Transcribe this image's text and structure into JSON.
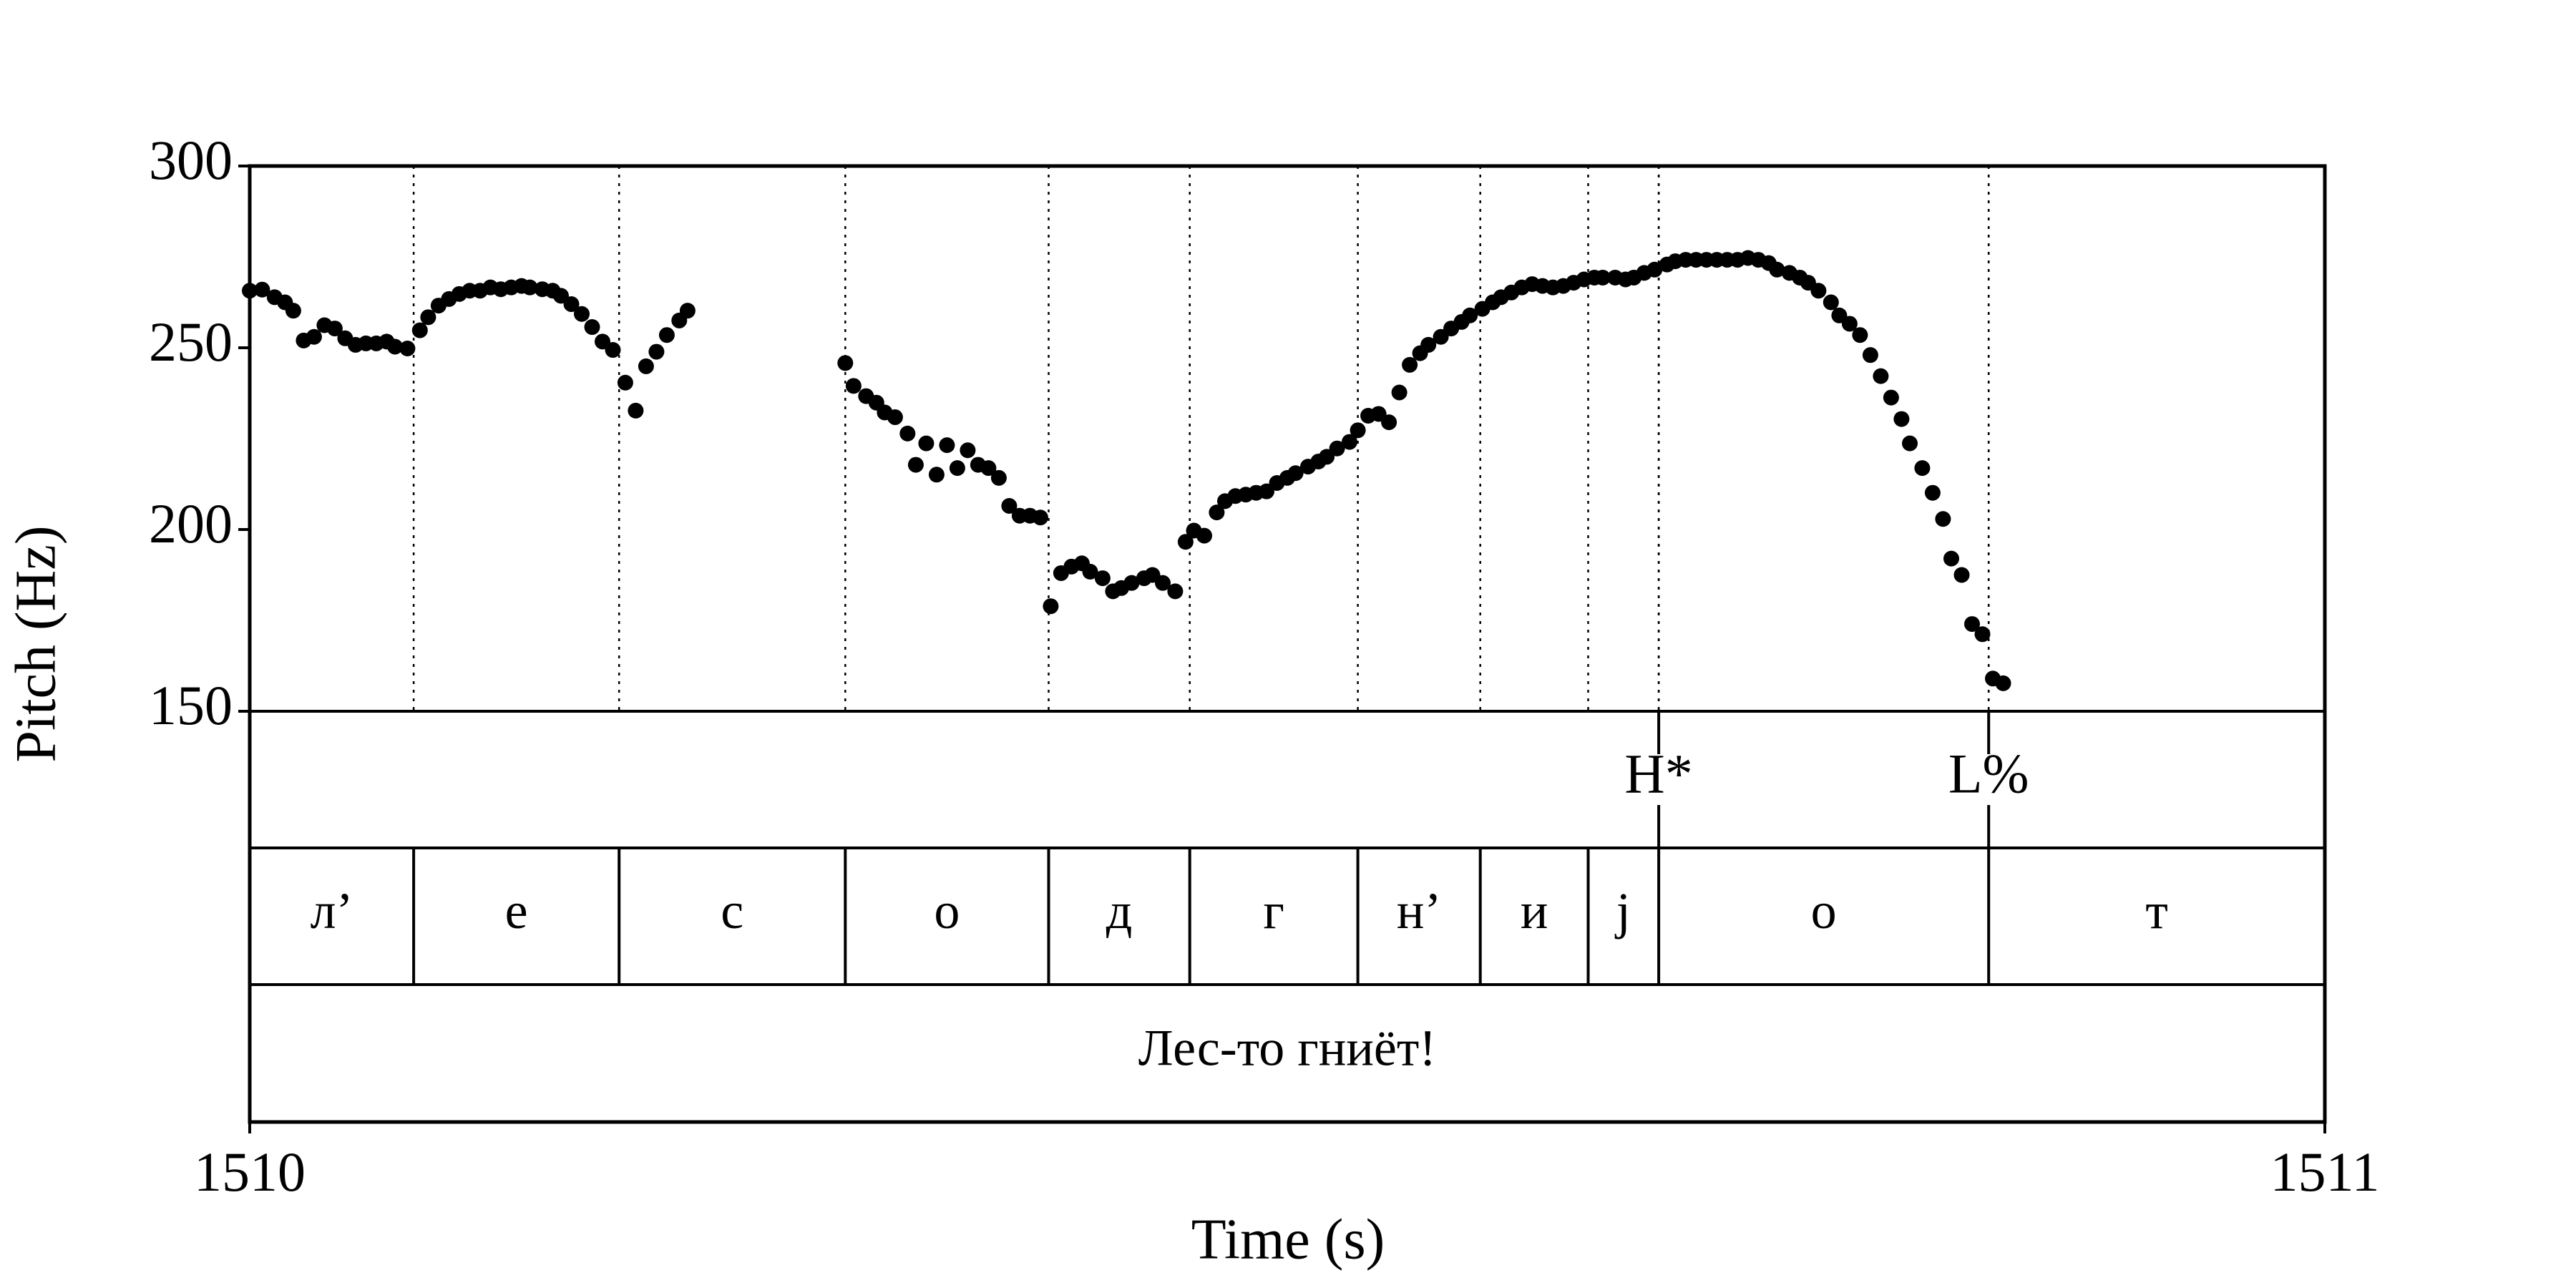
{
  "chart_data": {
    "type": "scatter",
    "xlabel": "Time (s)",
    "ylabel": "Pitch (Hz)",
    "color": "#000000",
    "xlim": [
      1510,
      1511
    ],
    "ylim": [
      150,
      300
    ],
    "xticks": [
      1510,
      1511
    ],
    "yticks": [
      150,
      200,
      250,
      300
    ],
    "x": [
      1510.0,
      1510.006,
      1510.012,
      1510.017,
      1510.021,
      1510.026,
      1510.031,
      1510.036,
      1510.041,
      1510.046,
      1510.051,
      1510.056,
      1510.061,
      1510.066,
      1510.07,
      1510.076,
      1510.082,
      1510.086,
      1510.091,
      1510.096,
      1510.101,
      1510.106,
      1510.111,
      1510.116,
      1510.121,
      1510.126,
      1510.131,
      1510.135,
      1510.141,
      1510.146,
      1510.15,
      1510.155,
      1510.16,
      1510.165,
      1510.17,
      1510.175,
      1510.181,
      1510.186,
      1510.191,
      1510.196,
      1510.201,
      1510.207,
      1510.211,
      1510.287,
      1510.291,
      1510.297,
      1510.302,
      1510.306,
      1510.311,
      1510.317,
      1510.321,
      1510.326,
      1510.331,
      1510.336,
      1510.341,
      1510.346,
      1510.351,
      1510.356,
      1510.361,
      1510.366,
      1510.371,
      1510.376,
      1510.381,
      1510.386,
      1510.391,
      1510.396,
      1510.401,
      1510.405,
      1510.411,
      1510.416,
      1510.42,
      1510.425,
      1510.431,
      1510.435,
      1510.44,
      1510.446,
      1510.451,
      1510.455,
      1510.46,
      1510.466,
      1510.47,
      1510.475,
      1510.48,
      1510.485,
      1510.49,
      1510.495,
      1510.5,
      1510.504,
      1510.51,
      1510.515,
      1510.519,
      1510.524,
      1510.53,
      1510.534,
      1510.539,
      1510.544,
      1510.549,
      1510.554,
      1510.559,
      1510.564,
      1510.568,
      1510.574,
      1510.579,
      1510.584,
      1510.588,
      1510.594,
      1510.599,
      1510.603,
      1510.608,
      1510.613,
      1510.618,
      1510.623,
      1510.628,
      1510.633,
      1510.638,
      1510.643,
      1510.648,
      1510.652,
      1510.658,
      1510.663,
      1510.667,
      1510.672,
      1510.677,
      1510.683,
      1510.687,
      1510.692,
      1510.697,
      1510.702,
      1510.707,
      1510.712,
      1510.717,
      1510.722,
      1510.727,
      1510.732,
      1510.736,
      1510.742,
      1510.747,
      1510.751,
      1510.756,
      1510.762,
      1510.766,
      1510.771,
      1510.776,
      1510.781,
      1510.786,
      1510.791,
      1510.796,
      1510.8,
      1510.806,
      1510.811,
      1510.816,
      1510.82,
      1510.825,
      1510.83,
      1510.835,
      1510.84,
      1510.845
    ],
    "values": [
      265.7,
      266,
      263.9,
      262.5,
      260.2,
      252,
      253,
      256.2,
      255.3,
      252.6,
      250.8,
      251.2,
      251.2,
      251.7,
      250.3,
      249.8,
      254.8,
      258.4,
      261.6,
      263.4,
      264.8,
      265.7,
      265.7,
      266.6,
      266.1,
      266.6,
      267.0,
      266.6,
      266.1,
      265.7,
      264.3,
      262.0,
      259.3,
      255.7,
      251.7,
      249.4,
      240.4,
      232.7,
      244.9,
      248.9,
      253.5,
      257.5,
      260.2,
      245.8,
      239.5,
      236.7,
      234.9,
      232.2,
      230.9,
      226.4,
      217.8,
      223.7,
      215.1,
      223.2,
      216.9,
      221.8,
      217.8,
      216.9,
      214.2,
      206.5,
      203.8,
      203.8,
      203.3,
      178.9,
      188.0,
      189.8,
      190.7,
      188.4,
      186.6,
      183.0,
      183.9,
      185.3,
      186.6,
      187.5,
      185.3,
      183.0,
      196.6,
      199.7,
      198.3,
      204.7,
      207.8,
      209.2,
      209.6,
      210.1,
      210.5,
      212.8,
      214.2,
      215.5,
      217.3,
      218.7,
      220.0,
      222.3,
      224.1,
      227.3,
      231.3,
      231.8,
      229.5,
      237.7,
      245.3,
      248.5,
      250.8,
      253.0,
      255.3,
      257.1,
      258.9,
      260.7,
      262.5,
      263.9,
      265.2,
      266.6,
      267.5,
      267.0,
      266.6,
      267.0,
      267.9,
      268.8,
      269.3,
      269.3,
      269.3,
      268.8,
      269.3,
      270.6,
      271.5,
      272.9,
      273.8,
      274.2,
      274.2,
      274.2,
      274.2,
      274.2,
      274.2,
      274.7,
      274.2,
      273.3,
      271.5,
      270.6,
      269.3,
      267.9,
      265.7,
      262.5,
      258.9,
      256.6,
      253.5,
      248.0,
      242.2,
      236.3,
      230.4,
      223.7,
      216.9,
      210.1,
      202.9,
      192.0,
      187.5,
      174.0,
      171.2,
      159.0,
      157.7
    ],
    "tiers": [
      {
        "points": [
          {
            "time": 1510.679,
            "label": "H*"
          },
          {
            "time": 1510.838,
            "label": "L%"
          }
        ]
      },
      {
        "boundaries": [
          1510.079,
          1510.178,
          1510.287,
          1510.385,
          1510.453,
          1510.534,
          1510.593,
          1510.645,
          1510.679,
          1510.838
        ],
        "labels": [
          "л’",
          "е",
          "с",
          "о",
          "д",
          "г",
          "н’",
          "и",
          "j",
          "о",
          "т"
        ]
      },
      {
        "boundaries": [],
        "labels": [
          "Лес-то гниёт!"
        ]
      }
    ]
  }
}
